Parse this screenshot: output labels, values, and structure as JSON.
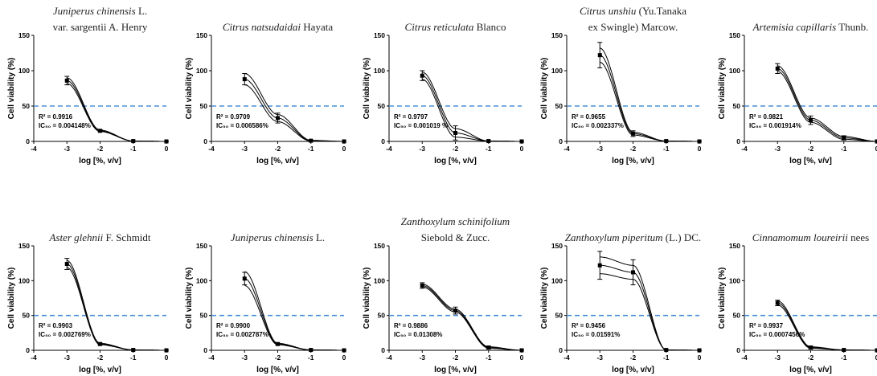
{
  "colors": {
    "threshold_line": "#4a90d9",
    "ink": "#000000"
  },
  "chart_data": [
    {
      "type": "line",
      "title_italic": "Juniperus chinensis",
      "title_rest": "L.",
      "title_line2": "var. sargentii A. Henry",
      "xlabel": "log [%, v/v]",
      "ylabel": "Cell viability (%)",
      "xlim": [
        -4,
        0
      ],
      "ylim": [
        0,
        150
      ],
      "xticks": [
        "-4",
        "-3",
        "-2",
        "-1",
        "0"
      ],
      "yticks": [
        "0",
        "50",
        "100",
        "150"
      ],
      "threshold": 50,
      "r2": "R² = 0.9916",
      "ic50": "IC₅₀ = 0.004148%",
      "x": [
        -3,
        -2,
        -1,
        0
      ],
      "mean": [
        86,
        15,
        0.5,
        0
      ],
      "err": [
        6,
        1.5,
        0.5,
        0
      ],
      "spread": [
        4,
        1,
        0,
        0
      ]
    },
    {
      "type": "line",
      "title_italic": "Citrus natsudaidai",
      "title_rest": "Hayata",
      "title_line2": "",
      "xlabel": "log [%, v/v]",
      "ylabel": "Cell viability (%)",
      "xlim": [
        -4,
        0
      ],
      "ylim": [
        0,
        150
      ],
      "xticks": [
        "-4",
        "-3",
        "-2",
        "-1",
        "0"
      ],
      "yticks": [
        "0",
        "50",
        "100",
        "150"
      ],
      "threshold": 50,
      "r2": "R² = 0.9709",
      "ic50": "IC₅₀ = 0.006586%",
      "x": [
        -3,
        -2,
        -1,
        0
      ],
      "mean": [
        88,
        33,
        1,
        0
      ],
      "err": [
        8,
        7,
        1,
        0
      ],
      "spread": [
        8,
        5,
        0.5,
        0
      ]
    },
    {
      "type": "line",
      "title_italic": "Citrus reticulata",
      "title_rest": "Blanco",
      "title_line2": "",
      "xlabel": "log [%, v/v]",
      "ylabel": "Cell viability (%)",
      "xlim": [
        -4,
        0
      ],
      "ylim": [
        0,
        150
      ],
      "xticks": [
        "-4",
        "-3",
        "-2",
        "-1",
        "0"
      ],
      "yticks": [
        "0",
        "50",
        "100",
        "150"
      ],
      "threshold": 50,
      "r2": "R² = 0.9797",
      "ic50": "IC₅₀ = 0.001019 %",
      "x": [
        -3,
        -2,
        -1,
        0
      ],
      "mean": [
        93,
        12,
        0.5,
        0
      ],
      "err": [
        7,
        10,
        0.5,
        0
      ],
      "spread": [
        5,
        6,
        0,
        0
      ]
    },
    {
      "type": "line",
      "title_italic": "Citrus unshiu",
      "title_rest": "(Yu.Tanaka",
      "title_line2": "ex Swingle)  Marcow.",
      "xlabel": "log [%, v/v]",
      "ylabel": "Cell viability (%)",
      "xlim": [
        -4,
        0
      ],
      "ylim": [
        0,
        150
      ],
      "xticks": [
        "-4",
        "-3",
        "-2",
        "-1",
        "0"
      ],
      "yticks": [
        "0",
        "50",
        "100",
        "150"
      ],
      "threshold": 50,
      "r2": "R² = 0.9655",
      "ic50": "IC₅₀ = 0.002337%",
      "x": [
        -3,
        -2,
        -1,
        0
      ],
      "mean": [
        122,
        11,
        0.5,
        0
      ],
      "err": [
        18,
        4,
        0.5,
        0
      ],
      "spread": [
        10,
        2,
        0,
        0
      ]
    },
    {
      "type": "line",
      "title_italic": "Artemisia capillaris",
      "title_rest": "Thunb.",
      "title_line2": "",
      "xlabel": "log [%, v/v]",
      "ylabel": "Cell viability (%)",
      "xlim": [
        -4,
        0
      ],
      "ylim": [
        0,
        150
      ],
      "xticks": [
        "-4",
        "-3",
        "-2",
        "-1",
        "0"
      ],
      "yticks": [
        "0",
        "50",
        "100",
        "150"
      ],
      "threshold": 50,
      "r2": "R² = 0.9821",
      "ic50": "IC₅₀ = 0.001914%",
      "x": [
        -3,
        -2,
        -1,
        0
      ],
      "mean": [
        103,
        30,
        5,
        0
      ],
      "err": [
        7,
        6,
        3,
        0
      ],
      "spread": [
        4,
        3,
        2,
        0
      ]
    },
    {
      "type": "line",
      "title_italic": "Aster glehnii",
      "title_rest": "F. Schmidt",
      "title_line2": "",
      "xlabel": "log [%, v/v]",
      "ylabel": "Cell viability (%)",
      "xlim": [
        -4,
        0
      ],
      "ylim": [
        0,
        150
      ],
      "xticks": [
        "-4",
        "-3",
        "-2",
        "-1",
        "0"
      ],
      "yticks": [
        "0",
        "50",
        "100",
        "150"
      ],
      "threshold": 50,
      "r2": "R² = 0.9903",
      "ic50": "IC₅₀ = 0.002769%",
      "x": [
        -3,
        -2,
        -1,
        0
      ],
      "mean": [
        124,
        9,
        0.5,
        0
      ],
      "err": [
        8,
        1.5,
        0.5,
        0
      ],
      "spread": [
        5,
        1,
        0,
        0
      ]
    },
    {
      "type": "line",
      "title_italic": "Juniperus chinensis",
      "title_rest": "L.",
      "title_line2": "",
      "xlabel": "log [%, v/v]",
      "ylabel": "Cell viability (%)",
      "xlim": [
        -4,
        0
      ],
      "ylim": [
        0,
        150
      ],
      "xticks": [
        "-4",
        "-3",
        "-2",
        "-1",
        "0"
      ],
      "yticks": [
        "0",
        "50",
        "100",
        "150"
      ],
      "threshold": 50,
      "r2": "R² = 0.9900",
      "ic50": "IC₅₀ = 0.002787%",
      "x": [
        -3,
        -2,
        -1,
        0
      ],
      "mean": [
        103,
        9,
        0.5,
        0
      ],
      "err": [
        9,
        1.5,
        0.5,
        0
      ],
      "spread": [
        10,
        1,
        0,
        0
      ]
    },
    {
      "type": "line",
      "title_italic": "Zanthoxylum schinifolium",
      "title_rest": "",
      "title_line2": "Siebold & Zucc.",
      "xlabel": "log [%, v/v]",
      "ylabel": "Cell viability (%)",
      "xlim": [
        -4,
        0
      ],
      "ylim": [
        0,
        150
      ],
      "xticks": [
        "-4",
        "-3",
        "-2",
        "-1",
        "0"
      ],
      "yticks": [
        "0",
        "50",
        "100",
        "150"
      ],
      "threshold": 50,
      "r2": "R² = 0.9886",
      "ic50": "IC₅₀ = 0.01308%",
      "x": [
        -3,
        -2,
        -1,
        0
      ],
      "mean": [
        93,
        57,
        4,
        0
      ],
      "err": [
        4,
        5,
        2,
        0
      ],
      "spread": [
        2,
        2,
        1,
        0
      ]
    },
    {
      "type": "line",
      "title_italic": "Zanthoxylum piperitum",
      "title_rest": "(L.) DC.",
      "title_line2": "",
      "xlabel": "log [%, v/v]",
      "ylabel": "Cell viability (%)",
      "xlim": [
        -4,
        0
      ],
      "ylim": [
        0,
        150
      ],
      "xticks": [
        "-4",
        "-3",
        "-2",
        "-1",
        "0"
      ],
      "yticks": [
        "0",
        "50",
        "100",
        "150"
      ],
      "threshold": 50,
      "r2": "R² = 0.9456",
      "ic50": "IC₅₀ = 0.01591%",
      "x": [
        -3,
        -2,
        -1,
        0
      ],
      "mean": [
        122,
        112,
        0.5,
        0
      ],
      "err": [
        20,
        18,
        0.5,
        0
      ],
      "spread": [
        12,
        10,
        0,
        0
      ]
    },
    {
      "type": "line",
      "title_italic": "Cinnamomum loureirii",
      "title_rest": "nees",
      "title_line2": "",
      "xlabel": "log [%, v/v]",
      "ylabel": "Cell viability (%)",
      "xlim": [
        -4,
        0
      ],
      "ylim": [
        0,
        150
      ],
      "xticks": [
        "-4",
        "-3",
        "-2",
        "-1",
        "0"
      ],
      "yticks": [
        "0",
        "50",
        "100",
        "150"
      ],
      "threshold": 50,
      "r2": "R² = 0.9937",
      "ic50": "IC₅₀ = 0.0007456%",
      "x": [
        -3,
        -2,
        -1,
        0
      ],
      "mean": [
        68,
        4,
        0.5,
        0
      ],
      "err": [
        4,
        2,
        0.5,
        0
      ],
      "spread": [
        3,
        1,
        0,
        0
      ]
    }
  ]
}
